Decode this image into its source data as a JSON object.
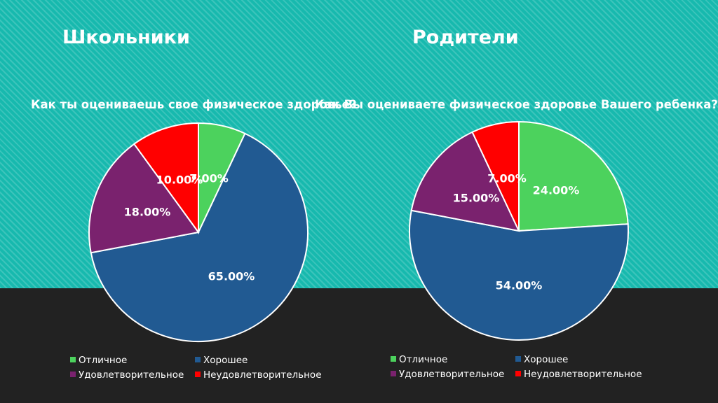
{
  "slide": {
    "left_title": "Школьники",
    "right_title": "Родители"
  },
  "colors": {
    "Отличное": "#4cd25d",
    "Хорошее": "#215a92",
    "Удовлетворительное": "#7a226e",
    "Неудовлетворительное": "#ff0000"
  },
  "chart_data": [
    {
      "type": "pie",
      "title": "Как ты оцениваешь свое физическое здоровье?",
      "categories": [
        "Отличное",
        "Хорошее",
        "Удовлетворительное",
        "Неудовлетворительное"
      ],
      "values": [
        7.0,
        65.0,
        18.0,
        10.0
      ],
      "labels": [
        "7.00%",
        "65.00%",
        "18.00%",
        "10.00%"
      ],
      "legend_position": "bottom"
    },
    {
      "type": "pie",
      "title": "Как Вы оцениваете физическое здоровье Вашего ребенка?",
      "categories": [
        "Отличное",
        "Хорошее",
        "Удовлетворительное",
        "Неудовлетворительное"
      ],
      "values": [
        24.0,
        54.0,
        15.0,
        7.0
      ],
      "labels": [
        "24.00%",
        "54.00%",
        "15.00%",
        "7.00%"
      ],
      "legend_position": "bottom"
    }
  ]
}
